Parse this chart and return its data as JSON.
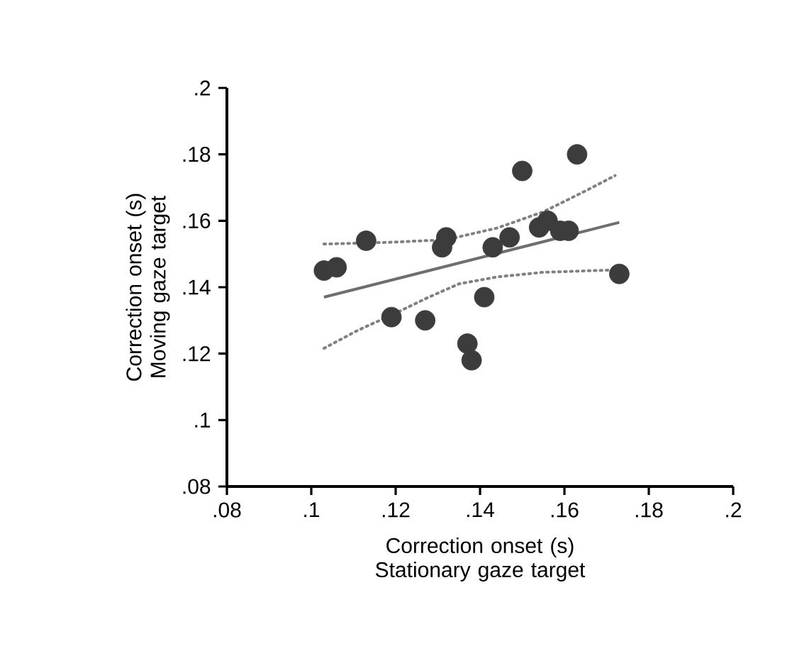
{
  "chart_data": {
    "type": "scatter",
    "xlabel": "Correction onset (s) Stationary gaze target",
    "ylabel": "Correction onset (s) Moving gaze target",
    "xlim": [
      0.08,
      0.2
    ],
    "ylim": [
      0.08,
      0.2
    ],
    "xticks": [
      {
        "value": 0.08,
        "label": ".08"
      },
      {
        "value": 0.1,
        "label": ".1"
      },
      {
        "value": 0.12,
        "label": ".12"
      },
      {
        "value": 0.14,
        "label": ".14"
      },
      {
        "value": 0.16,
        "label": ".16"
      },
      {
        "value": 0.18,
        "label": ".18"
      },
      {
        "value": 0.2,
        "label": ".2"
      }
    ],
    "yticks": [
      {
        "value": 0.08,
        "label": ".08"
      },
      {
        "value": 0.1,
        "label": ".1"
      },
      {
        "value": 0.12,
        "label": ".12"
      },
      {
        "value": 0.14,
        "label": ".14"
      },
      {
        "value": 0.16,
        "label": ".16"
      },
      {
        "value": 0.18,
        "label": ".18"
      },
      {
        "value": 0.2,
        "label": ".2"
      }
    ],
    "grid": false,
    "marker": "circle",
    "series": [
      {
        "color": "#3c3c3c",
        "x": [
          0.103,
          0.106,
          0.113,
          0.119,
          0.127,
          0.131,
          0.132,
          0.137,
          0.138,
          0.141,
          0.143,
          0.147,
          0.15,
          0.154,
          0.156,
          0.159,
          0.161,
          0.163,
          0.173
        ],
        "values": [
          0.145,
          0.146,
          0.154,
          0.131,
          0.13,
          0.152,
          0.155,
          0.123,
          0.118,
          0.137,
          0.152,
          0.155,
          0.175,
          0.158,
          0.16,
          0.157,
          0.157,
          0.18,
          0.144
        ]
      },
      {
        "type": "line",
        "color": "#6e6e6e",
        "line_style": "solid",
        "marker": "none",
        "x": [
          0.103,
          0.173
        ],
        "values": [
          0.137,
          0.1595
        ]
      },
      {
        "type": "line",
        "color": "#808080",
        "line_style": "dotted",
        "marker": "none",
        "x": [
          0.103,
          0.118,
          0.132,
          0.144,
          0.155,
          0.165,
          0.172
        ],
        "values": [
          0.153,
          0.1535,
          0.1543,
          0.1578,
          0.1627,
          0.169,
          0.1736
        ]
      },
      {
        "type": "line",
        "color": "#808080",
        "line_style": "dotted",
        "marker": "none",
        "x": [
          0.103,
          0.111,
          0.119,
          0.1275,
          0.135,
          0.144,
          0.155,
          0.172
        ],
        "values": [
          0.1216,
          0.127,
          0.1316,
          0.1368,
          0.141,
          0.1431,
          0.1445,
          0.1452
        ]
      }
    ]
  }
}
